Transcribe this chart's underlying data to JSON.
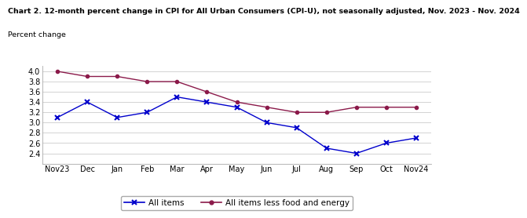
{
  "title_line1": "Chart 2. 12-month percent change in CPI for All Urban Consumers (CPI-U), not seasonally adjusted, Nov. 2023 - Nov. 2024",
  "title_line2": "Percent change",
  "x_labels": [
    "Nov23",
    "Dec",
    "Jan",
    "Feb",
    "Mar",
    "Apr",
    "May",
    "Jun",
    "Jul",
    "Aug",
    "Sep",
    "Oct",
    "Nov24"
  ],
  "all_items": [
    3.1,
    3.4,
    3.1,
    3.2,
    3.5,
    3.4,
    3.3,
    3.0,
    2.9,
    2.5,
    2.4,
    2.6,
    2.7
  ],
  "core_items": [
    4.0,
    3.9,
    3.9,
    3.8,
    3.8,
    3.6,
    3.4,
    3.3,
    3.2,
    3.2,
    3.3,
    3.3,
    3.3
  ],
  "all_items_color": "#0000cc",
  "core_items_color": "#8b1a4a",
  "ylim_min": 2.2,
  "ylim_max": 4.1,
  "yticks": [
    2.4,
    2.6,
    2.8,
    3.0,
    3.2,
    3.4,
    3.6,
    3.8,
    4.0
  ],
  "background_color": "#ffffff",
  "plot_bg_color": "#ffffff",
  "grid_color": "#cccccc",
  "title_fontsize": 6.8,
  "tick_fontsize": 7.0,
  "legend_label_all": "All items",
  "legend_label_core": "All items less food and energy",
  "legend_fontsize": 7.5
}
